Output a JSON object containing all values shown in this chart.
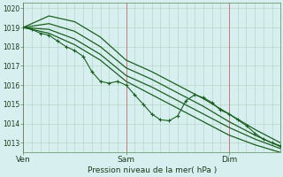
{
  "bg_color": "#d8eff0",
  "grid_color": "#b8d8c8",
  "grid_color_v_major": "#c87878",
  "line_color": "#1a6020",
  "ylabel_text": "Pression niveau de la mer( hPa )",
  "xtick_labels": [
    "Ven",
    "Sam",
    "Dim"
  ],
  "xtick_positions": [
    0.0,
    0.4,
    0.8
  ],
  "xlim": [
    0.0,
    1.0
  ],
  "ylim": [
    1012.5,
    1020.3
  ],
  "yticks": [
    1013,
    1014,
    1015,
    1016,
    1017,
    1018,
    1019,
    1020
  ],
  "lines": {
    "s1": {
      "x": [
        0.0,
        0.1,
        0.2,
        0.3,
        0.4,
        0.5,
        0.6,
        0.7,
        0.8,
        0.9,
        1.0
      ],
      "y": [
        1019.0,
        1019.6,
        1019.3,
        1018.5,
        1017.3,
        1016.7,
        1016.0,
        1015.3,
        1014.5,
        1013.7,
        1013.0
      ]
    },
    "s2": {
      "x": [
        0.0,
        0.1,
        0.2,
        0.3,
        0.4,
        0.5,
        0.6,
        0.7,
        0.8,
        0.9,
        1.0
      ],
      "y": [
        1019.0,
        1019.2,
        1018.8,
        1018.0,
        1016.9,
        1016.3,
        1015.6,
        1014.9,
        1014.1,
        1013.4,
        1012.8
      ]
    },
    "s3": {
      "x": [
        0.0,
        0.1,
        0.2,
        0.3,
        0.4,
        0.5,
        0.6,
        0.7,
        0.8,
        0.9,
        1.0
      ],
      "y": [
        1019.0,
        1018.9,
        1018.4,
        1017.6,
        1016.5,
        1015.9,
        1015.2,
        1014.5,
        1013.8,
        1013.2,
        1012.7
      ]
    },
    "s4": {
      "x": [
        0.0,
        0.1,
        0.2,
        0.3,
        0.4,
        0.5,
        0.6,
        0.7,
        0.8,
        0.9,
        1.0
      ],
      "y": [
        1019.0,
        1018.7,
        1018.1,
        1017.3,
        1016.2,
        1015.5,
        1014.8,
        1014.1,
        1013.4,
        1012.9,
        1012.5
      ]
    },
    "jagged": {
      "x": [
        0.0,
        0.033,
        0.067,
        0.1,
        0.133,
        0.167,
        0.2,
        0.233,
        0.267,
        0.3,
        0.333,
        0.367,
        0.4,
        0.433,
        0.467,
        0.5,
        0.533,
        0.567,
        0.6,
        0.633,
        0.667,
        0.7,
        0.733,
        0.767,
        0.8,
        0.833,
        0.867,
        0.9,
        0.933,
        0.967,
        1.0
      ],
      "y": [
        1019.0,
        1018.9,
        1018.7,
        1018.6,
        1018.3,
        1018.0,
        1017.8,
        1017.5,
        1016.7,
        1016.2,
        1016.1,
        1016.2,
        1016.0,
        1015.5,
        1015.0,
        1014.5,
        1014.2,
        1014.15,
        1014.4,
        1015.2,
        1015.5,
        1015.35,
        1015.1,
        1014.7,
        1014.5,
        1014.2,
        1013.9,
        1013.5,
        1013.2,
        1013.0,
        1012.85
      ]
    }
  }
}
